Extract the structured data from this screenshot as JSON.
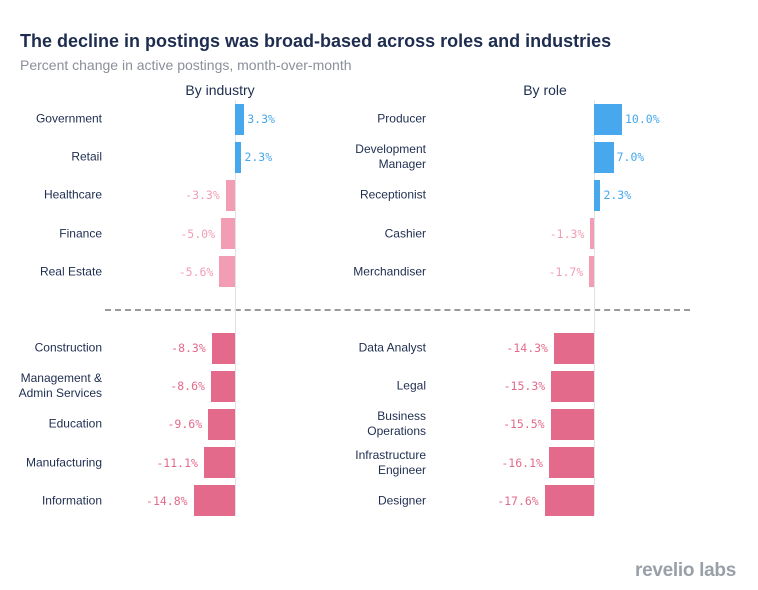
{
  "title": "The decline in postings was broad-based across roles and industries",
  "subtitle": "Percent change in active postings, month-over-month",
  "logo": "revelio labs",
  "chart_data": [
    {
      "type": "bar",
      "orientation": "horizontal",
      "title": "By industry",
      "categories": [
        "Government",
        "Retail",
        "Healthcare",
        "Finance",
        "Real Estate",
        "Construction",
        "Management &\nAdmin Services",
        "Education",
        "Manufacturing",
        "Information"
      ],
      "values": [
        3.3,
        2.3,
        -3.3,
        -5.0,
        -5.6,
        -8.3,
        -8.6,
        -9.6,
        -11.1,
        -14.8
      ],
      "value_labels": [
        "3.3%",
        "2.3%",
        "-3.3%",
        "-5.0%",
        "-5.6%",
        "-8.3%",
        "-8.6%",
        "-9.6%",
        "-11.1%",
        "-14.8%"
      ],
      "colors": [
        "#47a8ee",
        "#47a8ee",
        "#f39db5",
        "#f39db5",
        "#f39db5",
        "#e46a8b",
        "#e46a8b",
        "#e46a8b",
        "#e46a8b",
        "#e46a8b"
      ]
    },
    {
      "type": "bar",
      "orientation": "horizontal",
      "title": "By role",
      "categories": [
        "Producer",
        "Development\nManager",
        "Receptionist",
        "Cashier",
        "Merchandiser",
        "Data Analyst",
        "Legal",
        "Business\nOperations",
        "Infrastructure\nEngineer",
        "Designer"
      ],
      "values": [
        10.0,
        7.0,
        2.3,
        -1.3,
        -1.7,
        -14.3,
        -15.3,
        -15.5,
        -16.1,
        -17.6
      ],
      "value_labels": [
        "10.0%",
        "7.0%",
        "2.3%",
        "-1.3%",
        "-1.7%",
        "-14.3%",
        "-15.3%",
        "-15.5%",
        "-16.1%",
        "-17.6%"
      ],
      "colors": [
        "#47a8ee",
        "#47a8ee",
        "#47a8ee",
        "#f39db5",
        "#f39db5",
        "#e46a8b",
        "#e46a8b",
        "#e46a8b",
        "#e46a8b",
        "#e46a8b"
      ]
    }
  ]
}
